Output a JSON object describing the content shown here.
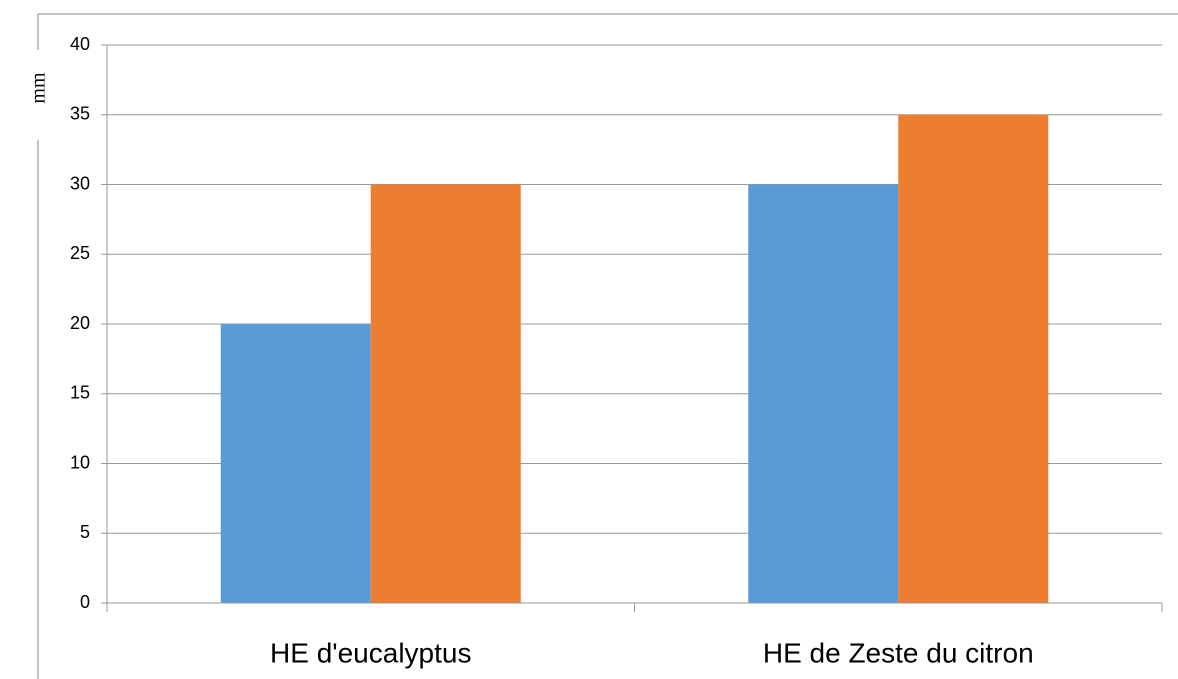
{
  "chart_data": {
    "type": "bar",
    "y_label": "mm",
    "categories": [
      "HE d'eucalyptus",
      "HE de Zeste du citron"
    ],
    "series": [
      {
        "color": "#5b9bd5",
        "values": [
          20,
          30
        ]
      },
      {
        "color": "#ed7d31",
        "values": [
          30,
          35
        ]
      }
    ],
    "ylim": [
      0,
      40
    ],
    "yticks": [
      0,
      5,
      10,
      15,
      20,
      25,
      30,
      35,
      40
    ],
    "grid": true
  }
}
